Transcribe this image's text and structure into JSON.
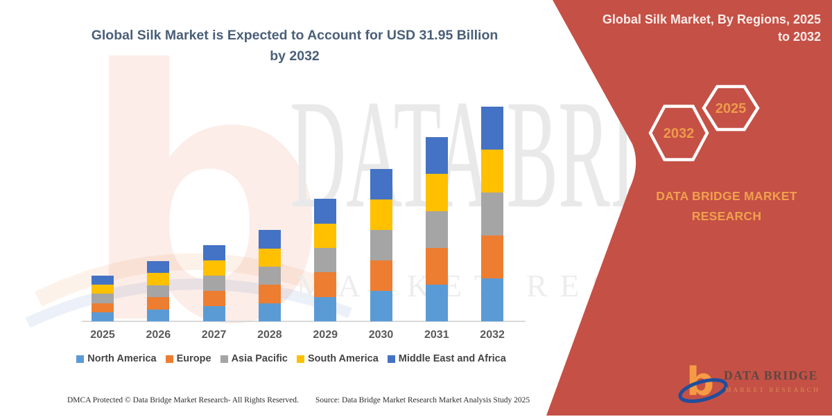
{
  "title": {
    "line1": "Global Silk Market is Expected to Account for USD 31.95 Billion",
    "line2": "by 2032",
    "color": "#4A5F78"
  },
  "chart_data": {
    "type": "bar",
    "stacked": true,
    "title": "Global Silk Market is Expected to Account for USD 31.95 Billion by 2032",
    "unit": "USD Billion",
    "categories": [
      "2025",
      "2026",
      "2027",
      "2028",
      "2029",
      "2030",
      "2031",
      "2032"
    ],
    "series": [
      {
        "name": "North America",
        "color": "#5B9BD5",
        "values": [
          1.36,
          1.8,
          2.26,
          2.72,
          3.64,
          4.54,
          5.48,
          6.39
        ]
      },
      {
        "name": "Europe",
        "color": "#ED7D31",
        "values": [
          1.36,
          1.8,
          2.26,
          2.72,
          3.64,
          4.54,
          5.48,
          6.39
        ]
      },
      {
        "name": "Asia Pacific",
        "color": "#A5A5A5",
        "values": [
          1.36,
          1.8,
          2.26,
          2.72,
          3.64,
          4.54,
          5.48,
          6.39
        ]
      },
      {
        "name": "South America",
        "color": "#FFC000",
        "values": [
          1.36,
          1.8,
          2.26,
          2.72,
          3.64,
          4.54,
          5.48,
          6.39
        ]
      },
      {
        "name": "Middle East and Africa",
        "color": "#4472C4",
        "values": [
          1.36,
          1.8,
          2.26,
          2.72,
          3.64,
          4.54,
          5.48,
          6.39
        ]
      }
    ],
    "estimated_totals": [
      6.8,
      9.0,
      11.3,
      13.6,
      18.2,
      22.7,
      27.4,
      31.95
    ],
    "ylim": [
      0,
      32
    ],
    "grid": false,
    "legend_position": "bottom"
  },
  "side_panel": {
    "bg": "#C55045",
    "title_line1": "Global Silk Market, By Regions, 2025",
    "title_line2": "to 2032",
    "title_color": "#FBEEEC",
    "accent": "#F0A04E",
    "hexagon_label_color": "#EC9B4B",
    "hexagons": [
      {
        "label": "2032"
      },
      {
        "label": "2025"
      }
    ],
    "brand_line1": "DATA BRIDGE MARKET",
    "brand_line2": "RESEARCH",
    "logo": {
      "name": "DATA BRIDGE",
      "tagline": "MARKET RESEARCH",
      "b_color": "#F59B45",
      "swoosh_color": "#1F4E9C",
      "name_color": "#5C4742",
      "tagline_color": "#E0925B"
    }
  },
  "watermarks": {
    "big_text": "DATA BRIDGE",
    "sub_text": "MARKET RESEARCH",
    "letter": "b"
  },
  "footer": {
    "left": "DMCA Protected © Data Bridge Market Research-  All Rights Reserved.",
    "right": "Source: Data Bridge Market Research  Market Analysis Study 2025"
  }
}
